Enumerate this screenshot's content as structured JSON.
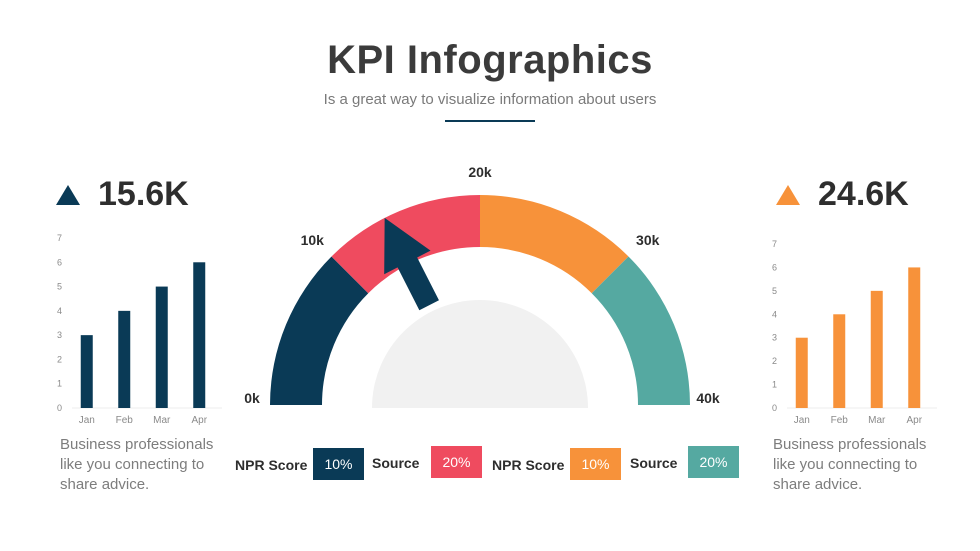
{
  "title": "KPI Infographics",
  "subtitle": "Is a great way to visualize information about users",
  "kpi_left": {
    "value": "15.6K",
    "color": "#0a3a56"
  },
  "kpi_right": {
    "value": "24.6K",
    "color": "#f7923a"
  },
  "description_left": "Business professionals like you connecting to share advice.",
  "description_right": "Business professionals like you connecting to share advice.",
  "legend": [
    {
      "label": "NPR Score",
      "value": "10%",
      "color": "#0a3a56"
    },
    {
      "label": "Source",
      "value": "20%",
      "color": "#ef4b5f"
    },
    {
      "label": "NPR Score",
      "value": "10%",
      "color": "#f7923a"
    },
    {
      "label": "Source",
      "value": "20%",
      "color": "#55a9a1"
    }
  ],
  "chart_data": [
    {
      "type": "bar",
      "categories": [
        "Jan",
        "Feb",
        "Mar",
        "Apr"
      ],
      "values": [
        3,
        4,
        5,
        6
      ],
      "ylim": [
        0,
        7
      ],
      "yticks": [
        "0",
        "1",
        "2",
        "3",
        "4",
        "5",
        "6",
        "7"
      ],
      "color": "#0a3a56",
      "grid": false
    },
    {
      "type": "gauge",
      "tick_labels": [
        "0k",
        "10k",
        "20k",
        "30k",
        "40k"
      ],
      "range": [
        0,
        40
      ],
      "segments": [
        {
          "from": 0,
          "to": 10,
          "color": "#0a3a56"
        },
        {
          "from": 10,
          "to": 20,
          "color": "#ef4b5f"
        },
        {
          "from": 20,
          "to": 30,
          "color": "#f7923a"
        },
        {
          "from": 30,
          "to": 40,
          "color": "#55a9a1"
        }
      ],
      "needle_value": 14
    },
    {
      "type": "bar",
      "categories": [
        "Jan",
        "Feb",
        "Mar",
        "Apr"
      ],
      "values": [
        3,
        4,
        5,
        6
      ],
      "ylim": [
        0,
        7
      ],
      "yticks": [
        "0",
        "1",
        "2",
        "3",
        "4",
        "5",
        "6",
        "7"
      ],
      "color": "#f7923a",
      "grid": false
    }
  ]
}
